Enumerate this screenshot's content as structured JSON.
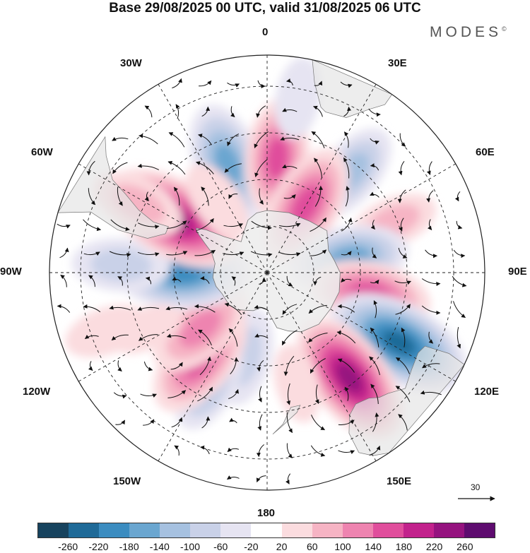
{
  "title": "Base 29/08/2025 00 UTC, valid 31/08/2025 06 UTC",
  "brand": {
    "name": "MODES",
    "mark": "©"
  },
  "map": {
    "projection": "south-polar-stereographic",
    "meridian_labels": [
      "0",
      "30E",
      "60E",
      "90E",
      "120E",
      "150E",
      "180",
      "150W",
      "120W",
      "90W",
      "60W",
      "30W"
    ],
    "reference_vector": {
      "value": "30"
    }
  },
  "colorbar": {
    "colors": [
      "#17435e",
      "#1f6a98",
      "#3b8cc0",
      "#6aa6d0",
      "#a6c1e0",
      "#c9d1e8",
      "#e6e4f2",
      "#ffffff",
      "#fbdcdf",
      "#f6b4c4",
      "#ee84b0",
      "#e04e9c",
      "#c2228c",
      "#95137f",
      "#5e0c6f"
    ],
    "labels": [
      "-260",
      "-220",
      "-180",
      "-140",
      "-100",
      "-60",
      "-20",
      "20",
      "60",
      "100",
      "140",
      "180",
      "220",
      "260"
    ]
  },
  "anomaly_centers": [
    {
      "lon": 340,
      "lat": -53,
      "value": -170
    },
    {
      "lon": 5,
      "lat": -53,
      "value": 150
    },
    {
      "lon": 40,
      "lat": -48,
      "value": -110
    },
    {
      "lon": 30,
      "lat": -65,
      "value": 170
    },
    {
      "lon": 68,
      "lat": -46,
      "value": 60
    },
    {
      "lon": 80,
      "lat": -63,
      "value": -150
    },
    {
      "lon": 102,
      "lat": -56,
      "value": 160
    },
    {
      "lon": 118,
      "lat": -42,
      "value": -240
    },
    {
      "lon": 142,
      "lat": -47,
      "value": 220
    },
    {
      "lon": 165,
      "lat": -53,
      "value": 30
    },
    {
      "lon": 195,
      "lat": -62,
      "value": -90
    },
    {
      "lon": 208,
      "lat": -50,
      "value": -100
    },
    {
      "lon": 218,
      "lat": -55,
      "value": 170
    },
    {
      "lon": 230,
      "lat": -62,
      "value": 130
    },
    {
      "lon": 270,
      "lat": -63,
      "value": -200
    },
    {
      "lon": 273,
      "lat": -43,
      "value": -90
    },
    {
      "lon": 300,
      "lat": -55,
      "value": 230
    },
    {
      "lon": 298,
      "lat": -43,
      "value": 80
    },
    {
      "lon": 325,
      "lat": -62,
      "value": 50
    },
    {
      "lon": 245,
      "lat": -47,
      "value": 20
    },
    {
      "lon": 10,
      "lat": -33,
      "value": -40
    },
    {
      "lon": 250,
      "lat": -35,
      "value": 50
    }
  ]
}
